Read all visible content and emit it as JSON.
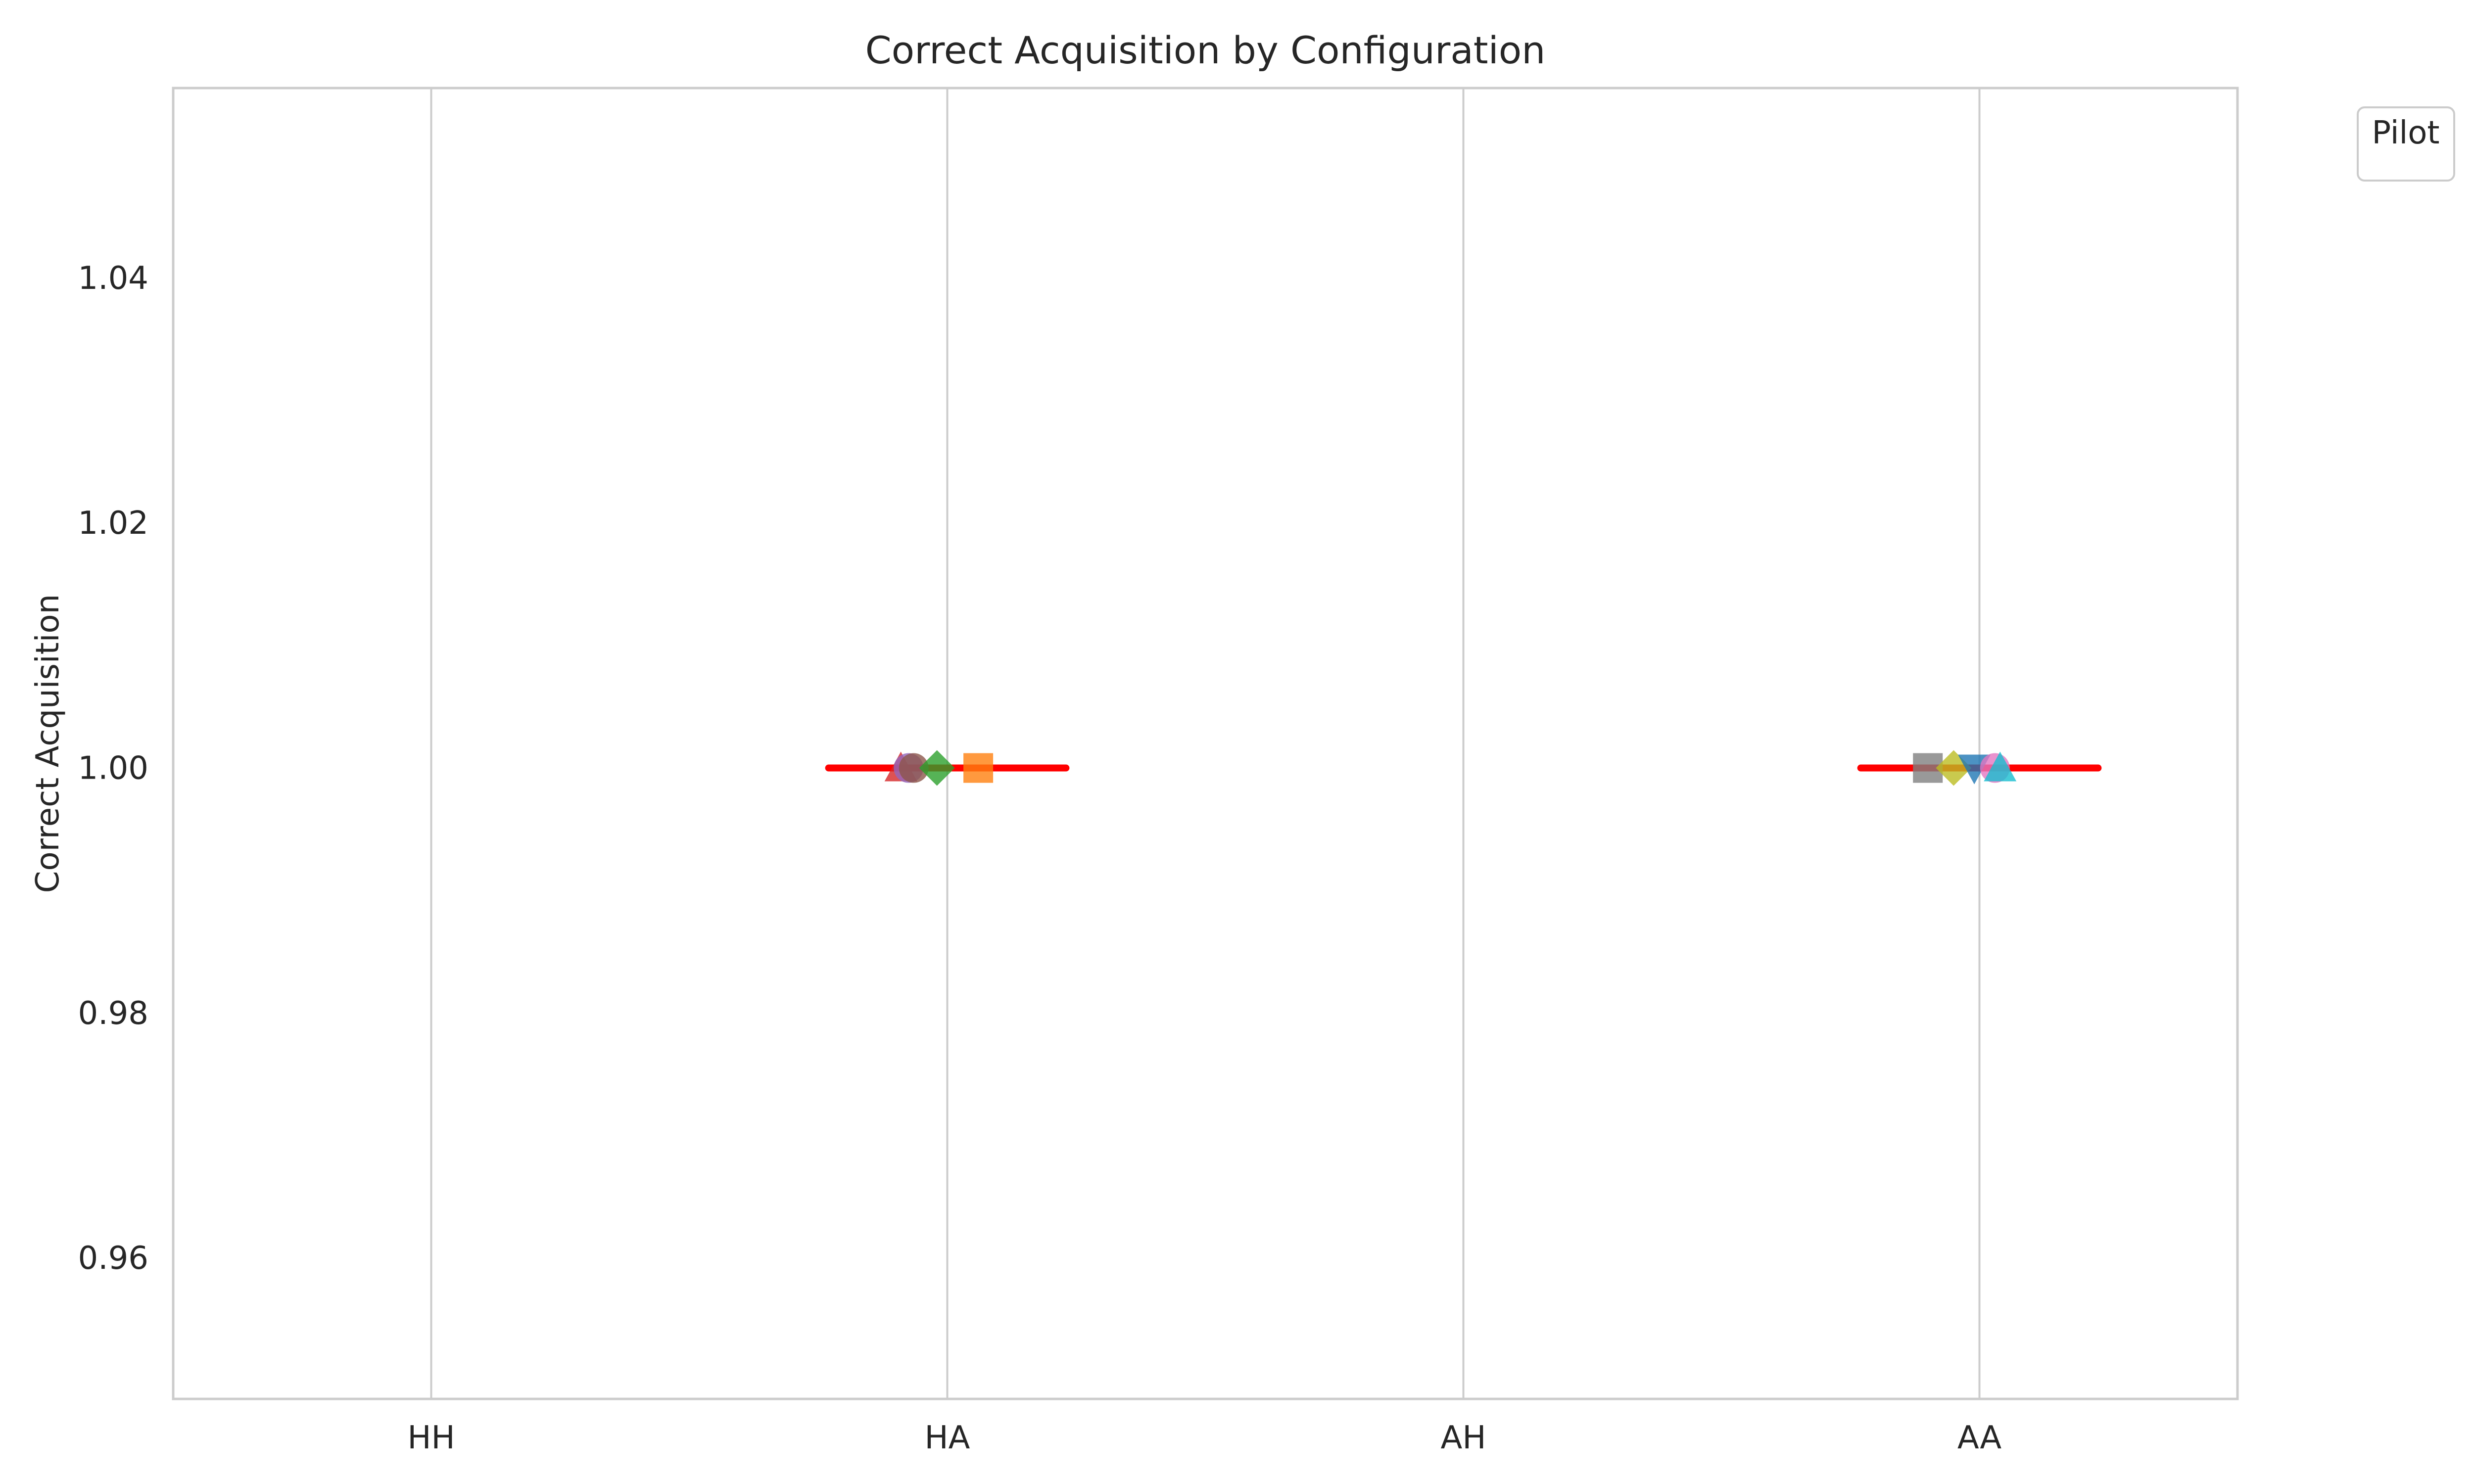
{
  "chart_data": {
    "type": "scatter",
    "title": "Correct Acquisition by Configuration",
    "xlabel": "",
    "ylabel": "Correct Acquisition",
    "categories": [
      "HH",
      "HA",
      "AH",
      "AA"
    ],
    "y_ticks": [
      0.96,
      0.98,
      1.0,
      1.02,
      1.04
    ],
    "y_tick_labels": [
      "0.96",
      "0.98",
      "1.00",
      "1.02",
      "1.04"
    ],
    "ylim": [
      0.9485,
      1.0555
    ],
    "grid": {
      "x": true,
      "y": false
    },
    "legend": {
      "title": "Pilot",
      "placement": "top-right outside",
      "entries": []
    },
    "mean_color": "#ff0000",
    "means": [
      {
        "category": "HA",
        "value": 1.0
      },
      {
        "category": "AA",
        "value": 1.0
      }
    ],
    "points": [
      {
        "category": "HA",
        "offset": -0.09,
        "value": 1.0,
        "marker": "triangle-up",
        "color": "#d62728"
      },
      {
        "category": "HA",
        "offset": -0.075,
        "value": 1.0,
        "marker": "circle",
        "color": "#9467bd"
      },
      {
        "category": "HA",
        "offset": -0.065,
        "value": 1.0,
        "marker": "circle",
        "color": "#8c564b"
      },
      {
        "category": "HA",
        "offset": -0.02,
        "value": 1.0,
        "marker": "diamond",
        "color": "#2ca02c"
      },
      {
        "category": "HA",
        "offset": 0.06,
        "value": 1.0,
        "marker": "square",
        "color": "#ff7f0e"
      },
      {
        "category": "AA",
        "offset": -0.1,
        "value": 1.0,
        "marker": "square",
        "color": "#7f7f7f"
      },
      {
        "category": "AA",
        "offset": -0.05,
        "value": 1.0,
        "marker": "diamond",
        "color": "#bcbd22"
      },
      {
        "category": "AA",
        "offset": -0.01,
        "value": 1.0,
        "marker": "triangle-down",
        "color": "#1f77b4"
      },
      {
        "category": "AA",
        "offset": 0.03,
        "value": 1.0,
        "marker": "circle",
        "color": "#e377c2"
      },
      {
        "category": "AA",
        "offset": 0.04,
        "value": 1.0,
        "marker": "triangle-up",
        "color": "#17becf"
      }
    ]
  }
}
